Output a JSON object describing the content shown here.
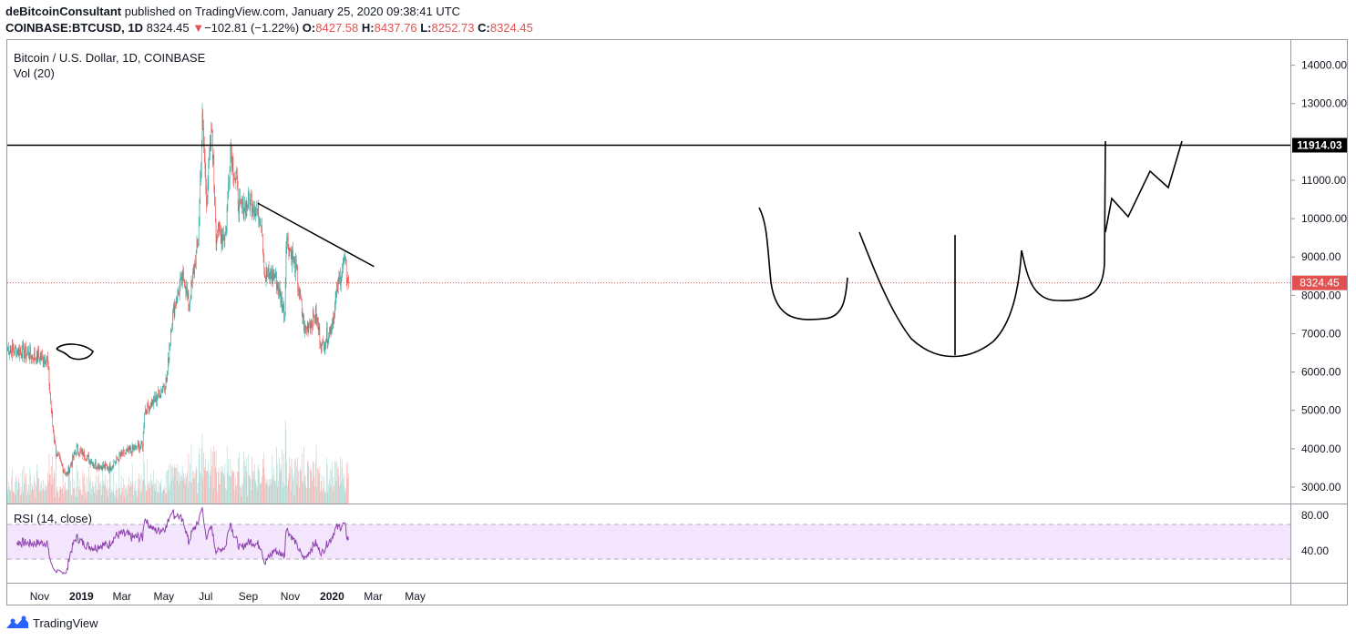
{
  "header": {
    "author": "deBitcoinConsultant",
    "published_text": " published on TradingView.com, January 25, 2020 09:38:41 UTC",
    "symbol": "COINBASE:BTCUSD, 1D",
    "last": "8324.45",
    "change_arrow": "▼",
    "change": "−102.81 (−1.22%)",
    "o_label": "O:",
    "o_value": "8427.58",
    "h_label": "H:",
    "h_value": "8437.76",
    "l_label": "L:",
    "l_value": "8252.73",
    "c_label": "C:",
    "c_value": "8324.45"
  },
  "legend": {
    "main_title": "Bitcoin / U.S. Dollar, 1D, COINBASE",
    "vol_title": "Vol (20)",
    "rsi_title": "RSI (14, close)"
  },
  "footer": {
    "brand": "TradingView",
    "icon": "tradingview-logo-icon"
  },
  "colors": {
    "up": "#26a69a",
    "down": "#ef5350",
    "rsi_line": "#8e44ad",
    "rsi_band": "#f3e5fb",
    "resistance": "#000000",
    "price_line": "#e05252"
  },
  "chart_data": {
    "type": "candlestick",
    "symbol": "BTCUSD",
    "interval": "1D",
    "y_ticks": [
      "14000.00",
      "13000.00",
      "11000.00",
      "10000.00",
      "9000.00",
      "8000.00",
      "7000.00",
      "6000.00",
      "5000.00",
      "4000.00",
      "3000.00"
    ],
    "ylim": [
      2500,
      14600
    ],
    "x_ticks": [
      "Nov",
      "2019",
      "Mar",
      "May",
      "Jul",
      "Sep",
      "Nov",
      "2020",
      "Mar",
      "May"
    ],
    "resistance_level": 11914.03,
    "resistance_label": "11914.03",
    "last_price": 8324.45,
    "last_price_label": "8324.45",
    "price_path_keypoints": [
      {
        "date": "2018-09-15",
        "close": 6600
      },
      {
        "date": "2018-10-05",
        "close": 6550
      },
      {
        "date": "2018-10-25",
        "close": 6400
      },
      {
        "date": "2018-11-12",
        "close": 6350
      },
      {
        "date": "2018-11-20",
        "close": 4600
      },
      {
        "date": "2018-11-25",
        "close": 3900
      },
      {
        "date": "2018-12-10",
        "close": 3300
      },
      {
        "date": "2018-12-25",
        "close": 4000
      },
      {
        "date": "2019-01-20",
        "close": 3600
      },
      {
        "date": "2019-02-10",
        "close": 3500
      },
      {
        "date": "2019-03-01",
        "close": 3850
      },
      {
        "date": "2019-03-31",
        "close": 4100
      },
      {
        "date": "2019-04-03",
        "close": 5000
      },
      {
        "date": "2019-04-20",
        "close": 5300
      },
      {
        "date": "2019-05-05",
        "close": 5800
      },
      {
        "date": "2019-05-12",
        "close": 7300
      },
      {
        "date": "2019-05-20",
        "close": 8000
      },
      {
        "date": "2019-05-31",
        "close": 8500
      },
      {
        "date": "2019-06-06",
        "close": 7700
      },
      {
        "date": "2019-06-20",
        "close": 9400
      },
      {
        "date": "2019-06-26",
        "close": 12500
      },
      {
        "date": "2019-07-02",
        "close": 10600
      },
      {
        "date": "2019-07-10",
        "close": 12300
      },
      {
        "date": "2019-07-16",
        "close": 9600
      },
      {
        "date": "2019-07-30",
        "close": 9600
      },
      {
        "date": "2019-08-06",
        "close": 11900
      },
      {
        "date": "2019-08-20",
        "close": 10200
      },
      {
        "date": "2019-09-05",
        "close": 10500
      },
      {
        "date": "2019-09-20",
        "close": 10000
      },
      {
        "date": "2019-09-25",
        "close": 8500
      },
      {
        "date": "2019-10-10",
        "close": 8500
      },
      {
        "date": "2019-10-24",
        "close": 7500
      },
      {
        "date": "2019-10-26",
        "close": 9500
      },
      {
        "date": "2019-11-08",
        "close": 8800
      },
      {
        "date": "2019-11-22",
        "close": 7100
      },
      {
        "date": "2019-12-08",
        "close": 7500
      },
      {
        "date": "2019-12-17",
        "close": 6650
      },
      {
        "date": "2019-12-31",
        "close": 7200
      },
      {
        "date": "2020-01-08",
        "close": 8100
      },
      {
        "date": "2020-01-18",
        "close": 8900
      },
      {
        "date": "2020-01-25",
        "close": 8324
      }
    ],
    "rsi": {
      "levels": [
        "80.00",
        "40.00"
      ],
      "overbought": 70,
      "oversold": 30
    },
    "annotations": [
      {
        "type": "trendline",
        "label": "neckline",
        "from": {
          "date": "2019-09-15",
          "price": 10400
        },
        "to": {
          "date": "2020-03-02",
          "price": 8750
        }
      },
      {
        "type": "curve",
        "label": "left-shoulder"
      },
      {
        "type": "curve",
        "label": "head"
      },
      {
        "type": "curve",
        "label": "right-shoulder"
      },
      {
        "type": "line",
        "label": "target-projection"
      }
    ]
  }
}
